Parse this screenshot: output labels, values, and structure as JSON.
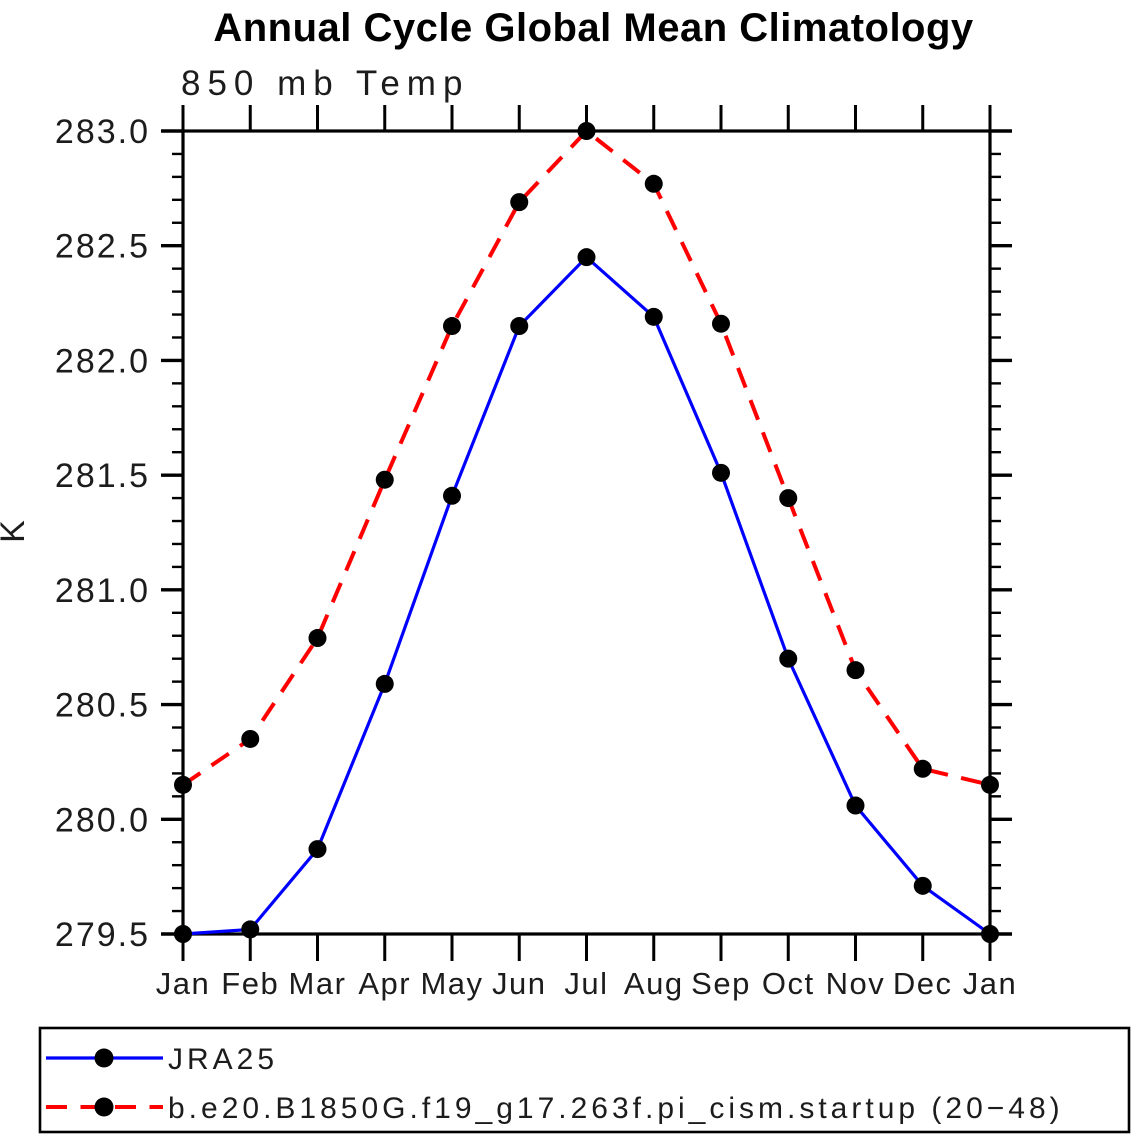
{
  "chart_data": {
    "type": "line",
    "title": "Annual Cycle Global Mean Climatology",
    "subtitle": "850 mb Temp",
    "ylabel": "K",
    "categories": [
      "Jan",
      "Feb",
      "Mar",
      "Apr",
      "May",
      "Jun",
      "Jul",
      "Aug",
      "Sep",
      "Oct",
      "Nov",
      "Dec",
      "Jan"
    ],
    "ylim": [
      279.5,
      283.0
    ],
    "ytick_major_step": 0.5,
    "ytick_minor_step": 0.1,
    "ytick_labels": [
      "279.5",
      "280.0",
      "280.5",
      "281.0",
      "281.5",
      "282.0",
      "282.5",
      "283.0"
    ],
    "grid": false,
    "legend_position": "bottom",
    "series": [
      {
        "name": "JRA25",
        "color": "#0000ff",
        "line_style": "solid",
        "marker": "circle",
        "marker_color": "#000000",
        "values": [
          279.5,
          279.52,
          279.87,
          280.59,
          281.41,
          282.15,
          282.45,
          282.19,
          281.51,
          280.7,
          280.06,
          279.71,
          279.5
        ]
      },
      {
        "name": "b.e20.B1850G.f19_g17.263f.pi_cism.startup (20−48)",
        "color": "#ff0000",
        "line_style": "dashed",
        "marker": "circle",
        "marker_color": "#000000",
        "values": [
          280.15,
          280.35,
          280.79,
          281.48,
          282.15,
          282.69,
          283.0,
          282.77,
          282.16,
          281.4,
          280.65,
          280.22,
          280.15
        ]
      }
    ]
  },
  "colors": {
    "axis": "#000000",
    "background": "#ffffff",
    "text": "#1c1c1c"
  }
}
